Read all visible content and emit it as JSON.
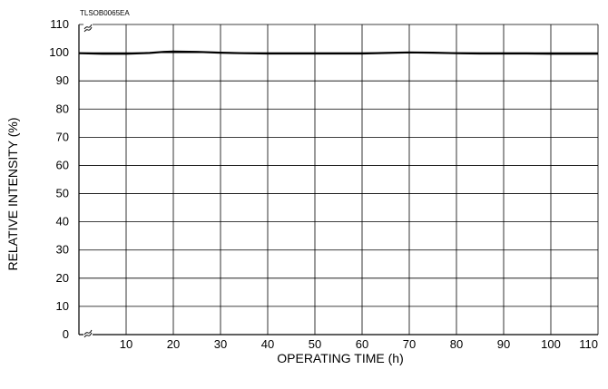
{
  "chart_data": {
    "type": "line",
    "title": "",
    "figure_code": "TLSOB0065EA",
    "xlabel": "OPERATING TIME (h)",
    "ylabel": "RELATIVE INTENSITY (%)",
    "xlim": [
      0,
      110
    ],
    "ylim": [
      0,
      110
    ],
    "x_ticks": [
      "10",
      "20",
      "30",
      "40",
      "50",
      "60",
      "70",
      "80",
      "90",
      "100",
      "110"
    ],
    "y_ticks": [
      "0",
      "10",
      "20",
      "30",
      "40",
      "50",
      "60",
      "70",
      "80",
      "90",
      "100",
      "110"
    ],
    "axis_break_marks": true,
    "grid": true,
    "legend": "none",
    "series": [
      {
        "x": [
          0,
          5,
          10,
          15,
          18,
          20,
          25,
          30,
          35,
          40,
          45,
          50,
          55,
          60,
          65,
          70,
          75,
          80,
          85,
          90,
          95,
          100,
          105,
          110
        ],
        "y": [
          99.8,
          99.6,
          99.6,
          99.9,
          100.3,
          100.4,
          100.3,
          100.0,
          99.8,
          99.7,
          99.7,
          99.7,
          99.7,
          99.7,
          99.9,
          100.1,
          100.0,
          99.8,
          99.7,
          99.7,
          99.7,
          99.6,
          99.6,
          99.6
        ],
        "color": "#000000"
      }
    ]
  }
}
